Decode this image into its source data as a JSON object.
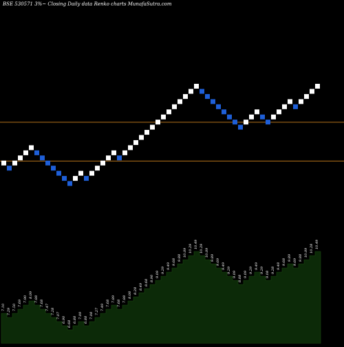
{
  "title": "BSE 530571 3%~   Closing Daily data  Renko  charts MunafaSutra.com",
  "colors": {
    "background": "#000000",
    "up_brick": "#ffffff",
    "down_brick": "#1e5fd8",
    "reference_line": "#b8741a",
    "area_fill": "#0c2a08",
    "area_edge": "#1a4a12",
    "label": "#ffffff"
  },
  "chart_data": {
    "type": "renko",
    "title": "BSE 530571 3%~   Closing Daily data  Renko  charts MunafaSutra.com",
    "reference_levels": [
      7.15,
      6.34
    ],
    "y_range": [
      5.9,
      9.2
    ],
    "directions": [
      "U",
      "D",
      "U",
      "U",
      "U",
      "U",
      "D",
      "D",
      "D",
      "D",
      "D",
      "D",
      "D",
      "U",
      "U",
      "D",
      "U",
      "U",
      "U",
      "U",
      "U",
      "D",
      "U",
      "U",
      "U",
      "U",
      "U",
      "U",
      "U",
      "U",
      "U",
      "U",
      "U",
      "U",
      "U",
      "U",
      "D",
      "D",
      "D",
      "D",
      "D",
      "D",
      "D",
      "D",
      "U",
      "U",
      "U",
      "D",
      "D",
      "U",
      "U",
      "U",
      "U",
      "D",
      "U",
      "U",
      "U",
      "U"
    ],
    "brick_labels": [
      "7.10",
      "7.29",
      "7.50",
      "7.69",
      "7.90",
      "8.09",
      "7.88",
      "7.68",
      "7.47",
      "7.28",
      "7.07",
      "6.90",
      "6.68",
      "6.88",
      "7.09",
      "6.88",
      "7.08",
      "7.27",
      "7.49",
      "7.68",
      "7.89",
      "7.68",
      "7.88",
      "8.08",
      "8.28",
      "8.49",
      "8.68",
      "8.90",
      "9.09",
      "9.29",
      "9.49",
      "9.68",
      "9.88",
      "10.09",
      "10.29",
      "10.49",
      "10.29",
      "10.09",
      "9.89",
      "9.69",
      "9.49",
      "9.29",
      "9.09",
      "8.88",
      "9.09",
      "9.29",
      "9.49",
      "9.29",
      "9.08",
      "9.28",
      "9.48",
      "9.68",
      "9.89",
      "9.69",
      "9.88",
      "10.09",
      "10.28",
      "10.49"
    ]
  }
}
